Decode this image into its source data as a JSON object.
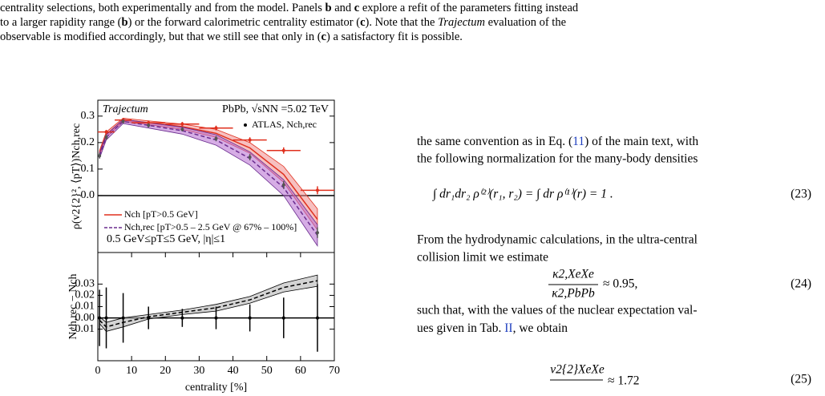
{
  "caption": {
    "line1": [
      "centrality selections, both experimentally and from the model. Panels ",
      "b",
      " and ",
      "c",
      " explore a refit of the parameters fitting instead"
    ],
    "line2": [
      "to a larger rapidity range (",
      "b",
      ") or the forward calorimetric centrality estimator (",
      "c",
      "). Note that the ",
      "Trajectum",
      " evaluation of the"
    ],
    "line3": [
      "observable is modified accordingly, but that we still see that only in (",
      "c",
      ") a satisfactory fit is possible."
    ]
  },
  "chart_data": [
    {
      "type": "line",
      "ylabel": "ρ(v2{2}², ⟨pT⟩)Nch,rec",
      "annotations": [
        "Trajectum",
        "PbPb, √sNN =5.02 TeV",
        "0.5 GeV≤pT≤5 GeV, |η|≤1"
      ],
      "xlim": [
        0,
        70
      ],
      "ylim": [
        -0.215,
        0.36
      ],
      "yticks": [
        {
          "value": 0,
          "label": "0.0"
        },
        0.1,
        0.2,
        0.3
      ],
      "zero_line": true,
      "series": [
        {
          "name": "Nch [pT>0.5 GeV]",
          "style": "line",
          "color": "#e0301e",
          "band_color": "#f08c8c",
          "x": [
            0.5,
            2.5,
            7.5,
            15,
            25,
            35,
            45,
            55,
            65
          ],
          "values": [
            0.16,
            0.23,
            0.285,
            0.275,
            0.26,
            0.235,
            0.18,
            0.08,
            -0.09
          ],
          "lower": [
            0.15,
            0.22,
            0.278,
            0.268,
            0.25,
            0.22,
            0.16,
            0.05,
            -0.13
          ],
          "upper": [
            0.17,
            0.24,
            0.292,
            0.282,
            0.27,
            0.25,
            0.2,
            0.11,
            -0.05
          ]
        },
        {
          "name": "Nch,rec [pT>0.5 – 2.5 GeV @ 67% – 100%]",
          "style": "dashed",
          "color": "#6a2c8e",
          "band_color": "#b46ad0",
          "x": [
            0.5,
            2.5,
            7.5,
            15,
            25,
            35,
            45,
            55,
            65
          ],
          "values": [
            0.15,
            0.22,
            0.28,
            0.265,
            0.245,
            0.21,
            0.14,
            0.03,
            -0.15
          ],
          "lower": [
            0.14,
            0.21,
            0.272,
            0.255,
            0.232,
            0.19,
            0.115,
            0.0,
            -0.19
          ],
          "upper": [
            0.16,
            0.23,
            0.288,
            0.275,
            0.258,
            0.23,
            0.165,
            0.06,
            -0.11
          ]
        },
        {
          "style": "points",
          "color": "#e0301e",
          "x": [
            2.5,
            7.5,
            15,
            25,
            35,
            45,
            55,
            65
          ],
          "xerr": [
            2.5,
            2.5,
            5,
            5,
            5,
            5,
            5,
            5
          ],
          "values": [
            0.24,
            0.285,
            0.275,
            0.27,
            0.255,
            0.21,
            0.17,
            0.02
          ],
          "errors": [
            0.008,
            0.008,
            0.008,
            0.008,
            0.009,
            0.01,
            0.012,
            0.015
          ]
        },
        {
          "name": "ATLAS, Nch,rec",
          "style": "points",
          "color": "#555555",
          "x": [
            0.5,
            2.5,
            7.5,
            15,
            25,
            35,
            45,
            55,
            65
          ],
          "values": [
            0.15,
            0.22,
            0.28,
            0.265,
            0.25,
            0.215,
            0.145,
            0.04,
            -0.14
          ],
          "errors": [
            0.01,
            0.01,
            0.008,
            0.008,
            0.008,
            0.01,
            0.012,
            0.015,
            0.02
          ]
        }
      ]
    },
    {
      "type": "line",
      "ylabel": "Nch,rec − Nch",
      "xlabel": "centrality [%]",
      "xlim": [
        0,
        70
      ],
      "ylim": [
        -0.038,
        0.058
      ],
      "xticks": [
        0,
        10,
        20,
        30,
        40,
        50,
        60,
        70
      ],
      "yticks": [
        {
          "value": -0.01,
          "label": "−0.01"
        },
        {
          "value": 0,
          "label": "0.00"
        },
        0.01,
        0.02,
        0.03
      ],
      "zero_line": true,
      "series": [
        {
          "style": "dashed",
          "color": "#000000",
          "band_color": "#b0b0b0",
          "x": [
            0.5,
            2.5,
            7.5,
            15,
            25,
            35,
            45,
            55,
            65
          ],
          "values": [
            -0.002,
            -0.008,
            -0.004,
            0.001,
            0.005,
            0.009,
            0.016,
            0.027,
            0.033
          ],
          "lower": [
            -0.005,
            -0.012,
            -0.008,
            -0.001,
            0.003,
            0.006,
            0.013,
            0.023,
            0.028
          ],
          "upper": [
            0.001,
            -0.004,
            0.0,
            0.003,
            0.007,
            0.012,
            0.019,
            0.031,
            0.038
          ]
        },
        {
          "style": "points",
          "color": "#000000",
          "x": [
            0.5,
            2.5,
            7.5,
            15,
            25,
            35,
            45,
            55,
            65
          ],
          "values": [
            0,
            0,
            0,
            0,
            0,
            0,
            0,
            0,
            0
          ],
          "errors": [
            0.025,
            0.027,
            0.022,
            0.01,
            0.008,
            0.01,
            0.012,
            0.018,
            0.03
          ]
        }
      ]
    }
  ],
  "body": {
    "para1": {
      "line1": [
        "the same convention as in Eq. (",
        "11",
        ") of the main text, with"
      ],
      "line2": "the following normalization for the many-body densities"
    },
    "eq23": {
      "expr": "∫ dr₁dr₂ ρ⁽²⁾(r₁, r₂) = ∫ dr ρ⁽¹⁾(r) = 1 .",
      "number": "(23)"
    },
    "para2": {
      "line1": "From the hydrodynamic calculations, in the ultra-central",
      "line2": "collision limit we estimate"
    },
    "eq24": {
      "numerator": "κ2,XeXe",
      "denominator": "κ2,PbPb",
      "rhs": "≈ 0.95,",
      "number": "(24)"
    },
    "para3": {
      "line1": "such that, with the values of the nuclear expectation val-",
      "line2": [
        "ues given in Tab. ",
        "II",
        ", we obtain"
      ]
    },
    "eq25": {
      "numerator": "v2{2}XeXe",
      "rhs": "≈ 1.72",
      "number": "(25)"
    }
  }
}
